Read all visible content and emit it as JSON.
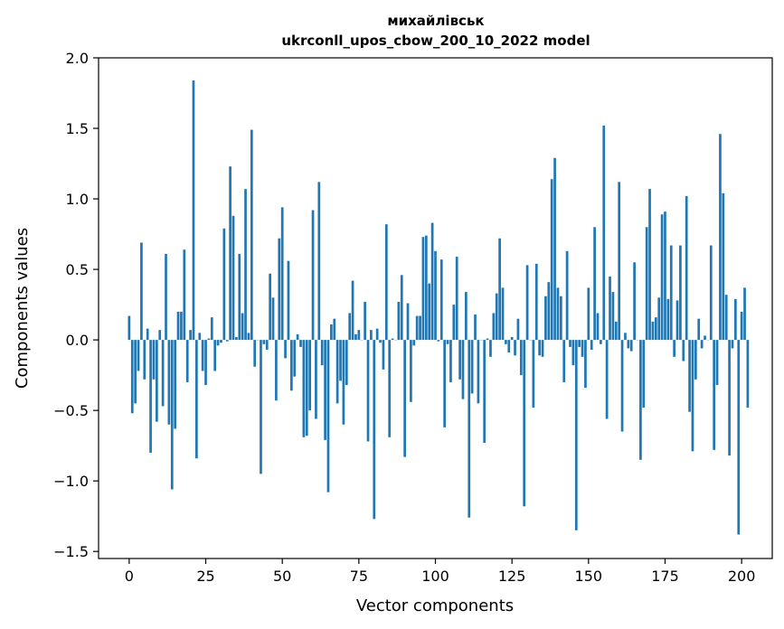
{
  "chart_data": {
    "type": "bar",
    "title": "михайлівськ",
    "subtitle": "ukrconll_upos_cbow_200_10_2022 model",
    "xlabel": "Vector components",
    "ylabel": "Components values",
    "xlim": [
      -10,
      210
    ],
    "ylim": [
      -1.55,
      2.0
    ],
    "xticks": [
      0,
      25,
      50,
      75,
      100,
      125,
      150,
      175,
      200
    ],
    "yticks": [
      -1.5,
      -1.0,
      -0.5,
      0.0,
      0.5,
      1.0,
      1.5,
      2.0
    ],
    "ytick_labels": [
      "−1.5",
      "−1.0",
      "−0.5",
      "0.0",
      "0.5",
      "1.0",
      "1.5",
      "2.0"
    ],
    "grid": false,
    "color": "#1f77b4",
    "values": [
      0.17,
      -0.52,
      -0.45,
      -0.22,
      0.69,
      -0.28,
      0.08,
      -0.8,
      -0.28,
      -0.58,
      0.07,
      -0.47,
      0.61,
      -0.6,
      -1.06,
      -0.63,
      0.2,
      0.2,
      0.64,
      -0.3,
      0.07,
      1.84,
      -0.84,
      0.05,
      -0.22,
      -0.32,
      0.01,
      0.16,
      -0.22,
      -0.04,
      -0.02,
      0.79,
      -0.01,
      1.23,
      0.88,
      0.02,
      0.61,
      0.19,
      1.07,
      0.05,
      1.49,
      -0.19,
      0.0,
      -0.95,
      -0.03,
      -0.07,
      0.47,
      0.3,
      -0.43,
      0.72,
      0.94,
      -0.13,
      0.56,
      -0.36,
      -0.26,
      0.04,
      -0.05,
      -0.69,
      -0.68,
      -0.5,
      0.92,
      -0.56,
      1.12,
      -0.18,
      -0.71,
      -1.08,
      0.11,
      0.15,
      -0.45,
      -0.29,
      -0.6,
      -0.32,
      0.19,
      0.42,
      0.04,
      0.07,
      0.0,
      0.27,
      -0.72,
      0.07,
      -1.27,
      0.08,
      -0.02,
      -0.21,
      0.82,
      -0.69,
      0.01,
      0.0,
      0.27,
      0.46,
      -0.83,
      0.26,
      -0.44,
      -0.04,
      0.17,
      0.17,
      0.73,
      0.74,
      0.4,
      0.83,
      0.63,
      -0.01,
      0.57,
      -0.62,
      -0.03,
      -0.3,
      0.25,
      0.59,
      -0.28,
      -0.42,
      0.34,
      -1.26,
      -0.38,
      0.18,
      -0.45,
      0.0,
      -0.73,
      0.01,
      -0.12,
      0.19,
      0.33,
      0.72,
      0.37,
      -0.03,
      -0.09,
      0.02,
      -0.11,
      0.15,
      -0.25,
      -1.18,
      0.53,
      0.0,
      -0.48,
      0.54,
      -0.11,
      -0.12,
      0.31,
      0.41,
      1.14,
      1.29,
      0.37,
      0.31,
      -0.3,
      0.63,
      -0.05,
      -0.18,
      -1.35,
      -0.05,
      -0.12,
      -0.34,
      0.37,
      -0.07,
      0.8,
      0.19,
      -0.03,
      1.52,
      -0.56,
      0.45,
      0.34,
      0.13,
      1.12,
      -0.65,
      0.05,
      -0.06,
      -0.08,
      0.55,
      0.0,
      -0.85,
      -0.48,
      0.8,
      1.07,
      0.13,
      0.16,
      0.3,
      0.89,
      0.91,
      0.29,
      0.67,
      -0.12,
      0.28,
      0.67,
      -0.15,
      1.02,
      -0.51,
      -0.79,
      -0.28,
      0.15,
      -0.06,
      0.03,
      0.0,
      0.67,
      -0.78,
      -0.32,
      1.46,
      1.04,
      0.32,
      -0.82,
      -0.06,
      0.29,
      -1.38,
      0.2,
      0.37,
      -0.48
    ]
  }
}
